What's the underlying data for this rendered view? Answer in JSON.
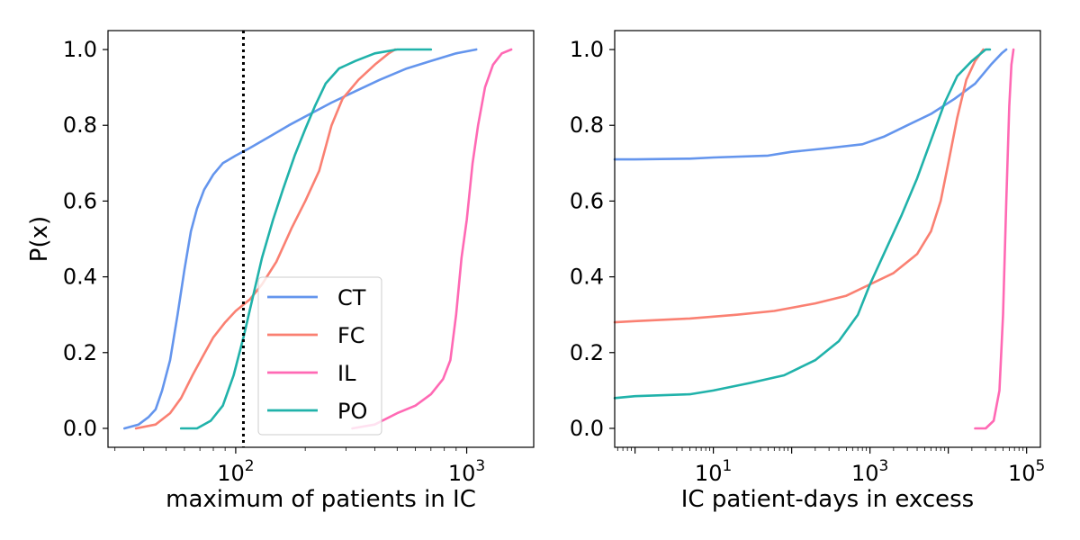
{
  "colors": {
    "CT": "#6495ED",
    "FC": "#FA8072",
    "IL": "#FF69B4",
    "PO": "#20B2AA",
    "threshold_line": "#000000"
  },
  "chart_data": [
    {
      "type": "line",
      "panel": "left",
      "xlabel": "maximum of patients in IC",
      "ylabel": "P(x)",
      "xscale": "log",
      "xlim": [
        28,
        1950
      ],
      "ylim": [
        -0.05,
        1.05
      ],
      "x_tick_labels": [
        {
          "value": 100,
          "base": "10",
          "exp": "2"
        },
        {
          "value": 1000,
          "base": "10",
          "exp": "3"
        }
      ],
      "y_ticks": [
        "0.0",
        "0.2",
        "0.4",
        "0.6",
        "0.8",
        "1.0"
      ],
      "legend": {
        "placement": "lower-right",
        "entries": [
          "CT",
          "FC",
          "IL",
          "PO"
        ]
      },
      "threshold": {
        "x": 108,
        "style": "dotted"
      },
      "series": [
        {
          "name": "CT",
          "points": [
            [
              33,
              0.0
            ],
            [
              38,
              0.01
            ],
            [
              42,
              0.03
            ],
            [
              45,
              0.05
            ],
            [
              48,
              0.1
            ],
            [
              52,
              0.18
            ],
            [
              56,
              0.3
            ],
            [
              60,
              0.42
            ],
            [
              64,
              0.52
            ],
            [
              68,
              0.58
            ],
            [
              73,
              0.63
            ],
            [
              80,
              0.67
            ],
            [
              88,
              0.7
            ],
            [
              100,
              0.72
            ],
            [
              115,
              0.74
            ],
            [
              140,
              0.77
            ],
            [
              170,
              0.8
            ],
            [
              210,
              0.83
            ],
            [
              260,
              0.86
            ],
            [
              330,
              0.89
            ],
            [
              420,
              0.92
            ],
            [
              550,
              0.95
            ],
            [
              700,
              0.97
            ],
            [
              900,
              0.99
            ],
            [
              1100,
              1.0
            ]
          ]
        },
        {
          "name": "FC",
          "points": [
            [
              37,
              0.0
            ],
            [
              45,
              0.01
            ],
            [
              52,
              0.04
            ],
            [
              58,
              0.08
            ],
            [
              65,
              0.14
            ],
            [
              72,
              0.19
            ],
            [
              80,
              0.24
            ],
            [
              90,
              0.28
            ],
            [
              100,
              0.31
            ],
            [
              115,
              0.34
            ],
            [
              130,
              0.38
            ],
            [
              150,
              0.44
            ],
            [
              175,
              0.53
            ],
            [
              200,
              0.6
            ],
            [
              230,
              0.68
            ],
            [
              260,
              0.8
            ],
            [
              290,
              0.87
            ],
            [
              340,
              0.92
            ],
            [
              400,
              0.96
            ],
            [
              460,
              0.99
            ],
            [
              490,
              1.0
            ]
          ]
        },
        {
          "name": "IL",
          "points": [
            [
              320,
              0.0
            ],
            [
              400,
              0.01
            ],
            [
              500,
              0.04
            ],
            [
              600,
              0.06
            ],
            [
              700,
              0.09
            ],
            [
              790,
              0.13
            ],
            [
              850,
              0.18
            ],
            [
              900,
              0.3
            ],
            [
              950,
              0.45
            ],
            [
              1000,
              0.55
            ],
            [
              1060,
              0.7
            ],
            [
              1120,
              0.8
            ],
            [
              1200,
              0.9
            ],
            [
              1300,
              0.96
            ],
            [
              1420,
              0.99
            ],
            [
              1560,
              1.0
            ]
          ]
        },
        {
          "name": "PO",
          "points": [
            [
              58,
              0.0
            ],
            [
              68,
              0.0
            ],
            [
              78,
              0.02
            ],
            [
              88,
              0.06
            ],
            [
              98,
              0.14
            ],
            [
              108,
              0.24
            ],
            [
              118,
              0.34
            ],
            [
              130,
              0.45
            ],
            [
              145,
              0.55
            ],
            [
              160,
              0.63
            ],
            [
              180,
              0.72
            ],
            [
              200,
              0.79
            ],
            [
              220,
              0.85
            ],
            [
              245,
              0.91
            ],
            [
              280,
              0.95
            ],
            [
              330,
              0.97
            ],
            [
              400,
              0.99
            ],
            [
              500,
              1.0
            ],
            [
              700,
              1.0
            ]
          ]
        }
      ]
    },
    {
      "type": "line",
      "panel": "right",
      "xlabel": "IC patient-days in excess",
      "ylabel": "",
      "xscale": "log",
      "xlim": [
        0.55,
        150000
      ],
      "ylim": [
        -0.05,
        1.05
      ],
      "x_tick_labels": [
        {
          "value": 10,
          "base": "10",
          "exp": "1"
        },
        {
          "value": 1000,
          "base": "10",
          "exp": "3"
        },
        {
          "value": 100000,
          "base": "10",
          "exp": "5"
        }
      ],
      "y_ticks": [
        "0.0",
        "0.2",
        "0.4",
        "0.6",
        "0.8",
        "1.0"
      ],
      "series": [
        {
          "name": "CT",
          "points": [
            [
              0.55,
              0.71
            ],
            [
              1,
              0.71
            ],
            [
              5,
              0.712
            ],
            [
              10,
              0.715
            ],
            [
              50,
              0.72
            ],
            [
              100,
              0.73
            ],
            [
              300,
              0.74
            ],
            [
              800,
              0.75
            ],
            [
              1500,
              0.77
            ],
            [
              3000,
              0.8
            ],
            [
              6000,
              0.83
            ],
            [
              12000,
              0.87
            ],
            [
              22000,
              0.91
            ],
            [
              35000,
              0.96
            ],
            [
              48000,
              0.99
            ],
            [
              55000,
              1.0
            ]
          ]
        },
        {
          "name": "FC",
          "points": [
            [
              0.55,
              0.28
            ],
            [
              1,
              0.283
            ],
            [
              5,
              0.29
            ],
            [
              20,
              0.3
            ],
            [
              60,
              0.31
            ],
            [
              200,
              0.33
            ],
            [
              500,
              0.35
            ],
            [
              1000,
              0.38
            ],
            [
              2000,
              0.41
            ],
            [
              4000,
              0.46
            ],
            [
              6000,
              0.52
            ],
            [
              8000,
              0.6
            ],
            [
              10000,
              0.7
            ],
            [
              13000,
              0.82
            ],
            [
              17000,
              0.92
            ],
            [
              22000,
              0.97
            ],
            [
              28000,
              1.0
            ]
          ]
        },
        {
          "name": "IL",
          "points": [
            [
              22000,
              0.0
            ],
            [
              30000,
              0.0
            ],
            [
              38000,
              0.02
            ],
            [
              45000,
              0.1
            ],
            [
              50000,
              0.3
            ],
            [
              55000,
              0.6
            ],
            [
              60000,
              0.85
            ],
            [
              64000,
              0.96
            ],
            [
              68000,
              1.0
            ]
          ]
        },
        {
          "name": "PO",
          "points": [
            [
              0.55,
              0.08
            ],
            [
              1,
              0.085
            ],
            [
              5,
              0.09
            ],
            [
              10,
              0.1
            ],
            [
              30,
              0.12
            ],
            [
              80,
              0.14
            ],
            [
              200,
              0.18
            ],
            [
              400,
              0.23
            ],
            [
              700,
              0.3
            ],
            [
              1000,
              0.38
            ],
            [
              1500,
              0.46
            ],
            [
              2500,
              0.56
            ],
            [
              4000,
              0.66
            ],
            [
              6000,
              0.76
            ],
            [
              9000,
              0.86
            ],
            [
              13000,
              0.93
            ],
            [
              20000,
              0.97
            ],
            [
              30000,
              1.0
            ],
            [
              34000,
              1.0
            ]
          ]
        }
      ]
    }
  ]
}
